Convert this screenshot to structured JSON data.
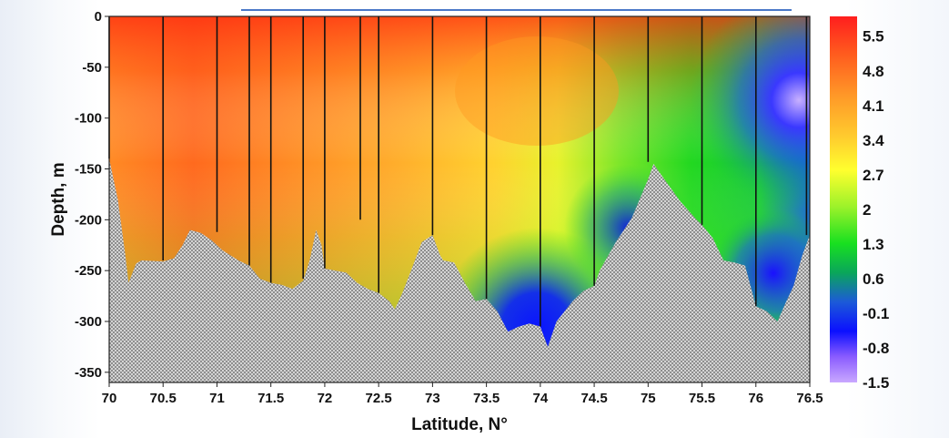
{
  "chart_data": {
    "type": "heatmap",
    "title": "",
    "xlabel": "Latitude, N°",
    "ylabel": "Depth, m",
    "xlim": [
      70,
      76.5
    ],
    "ylim": [
      -360,
      0
    ],
    "x_ticks": [
      "70",
      "70.5",
      "71",
      "71.5",
      "72",
      "72.5",
      "73",
      "73.5",
      "74",
      "74.5",
      "75",
      "75.5",
      "76",
      "76.5"
    ],
    "y_ticks": [
      "0",
      "-50",
      "-100",
      "-150",
      "-200",
      "-250",
      "-300",
      "-350"
    ],
    "colorbar": {
      "labels": [
        "5.5",
        "4.8",
        "4.1",
        "3.4",
        "2.7",
        "2",
        "1.3",
        "0.6",
        "-0.1",
        "-0.8",
        "-1.5"
      ],
      "range": [
        -1.5,
        5.9
      ]
    },
    "stations": [
      {
        "lat": 70.0,
        "depth": -140
      },
      {
        "lat": 70.5,
        "depth": -240
      },
      {
        "lat": 71.0,
        "depth": -212
      },
      {
        "lat": 71.3,
        "depth": -245
      },
      {
        "lat": 71.5,
        "depth": -262
      },
      {
        "lat": 71.8,
        "depth": -258
      },
      {
        "lat": 72.0,
        "depth": -248
      },
      {
        "lat": 72.33,
        "depth": -200
      },
      {
        "lat": 72.5,
        "depth": -272
      },
      {
        "lat": 73.0,
        "depth": -215
      },
      {
        "lat": 73.5,
        "depth": -278
      },
      {
        "lat": 74.0,
        "depth": -305
      },
      {
        "lat": 74.5,
        "depth": -265
      },
      {
        "lat": 75.0,
        "depth": -143
      },
      {
        "lat": 75.5,
        "depth": -205
      },
      {
        "lat": 76.0,
        "depth": -285
      },
      {
        "lat": 76.47,
        "depth": -215
      }
    ],
    "bottom_profile": [
      [
        70.0,
        -140
      ],
      [
        70.08,
        -180
      ],
      [
        70.15,
        -235
      ],
      [
        70.18,
        -262
      ],
      [
        70.25,
        -243
      ],
      [
        70.3,
        -240
      ],
      [
        70.5,
        -241
      ],
      [
        70.6,
        -238
      ],
      [
        70.68,
        -225
      ],
      [
        70.75,
        -210
      ],
      [
        70.85,
        -213
      ],
      [
        70.95,
        -220
      ],
      [
        71.05,
        -230
      ],
      [
        71.2,
        -240
      ],
      [
        71.3,
        -245
      ],
      [
        71.4,
        -258
      ],
      [
        71.5,
        -262
      ],
      [
        71.6,
        -264
      ],
      [
        71.7,
        -268
      ],
      [
        71.8,
        -260
      ],
      [
        71.86,
        -240
      ],
      [
        71.92,
        -210
      ],
      [
        71.97,
        -225
      ],
      [
        72.0,
        -248
      ],
      [
        72.1,
        -250
      ],
      [
        72.2,
        -252
      ],
      [
        72.3,
        -262
      ],
      [
        72.4,
        -268
      ],
      [
        72.5,
        -272
      ],
      [
        72.6,
        -280
      ],
      [
        72.65,
        -288
      ],
      [
        72.72,
        -272
      ],
      [
        72.8,
        -250
      ],
      [
        72.9,
        -222
      ],
      [
        73.0,
        -215
      ],
      [
        73.07,
        -235
      ],
      [
        73.1,
        -240
      ],
      [
        73.2,
        -242
      ],
      [
        73.3,
        -262
      ],
      [
        73.4,
        -280
      ],
      [
        73.5,
        -278
      ],
      [
        73.6,
        -290
      ],
      [
        73.7,
        -310
      ],
      [
        73.8,
        -305
      ],
      [
        73.9,
        -302
      ],
      [
        74.0,
        -305
      ],
      [
        74.07,
        -325
      ],
      [
        74.15,
        -300
      ],
      [
        74.3,
        -280
      ],
      [
        74.4,
        -270
      ],
      [
        74.5,
        -265
      ],
      [
        74.55,
        -250
      ],
      [
        74.7,
        -222
      ],
      [
        74.85,
        -198
      ],
      [
        75.0,
        -160
      ],
      [
        75.05,
        -145
      ],
      [
        75.15,
        -160
      ],
      [
        75.3,
        -182
      ],
      [
        75.45,
        -200
      ],
      [
        75.5,
        -205
      ],
      [
        75.6,
        -218
      ],
      [
        75.7,
        -240
      ],
      [
        75.8,
        -242
      ],
      [
        75.9,
        -245
      ],
      [
        76.0,
        -285
      ],
      [
        76.1,
        -290
      ],
      [
        76.2,
        -300
      ],
      [
        76.27,
        -283
      ],
      [
        76.35,
        -265
      ],
      [
        76.43,
        -235
      ],
      [
        76.5,
        -215
      ]
    ],
    "field_note": "Temperature field: ~4.5–5.5 in north-west surface layer, decreasing to ~2 near 73–74.5 N, < 0 near bottom at 73.8–74.2 N and east of 76 N"
  }
}
